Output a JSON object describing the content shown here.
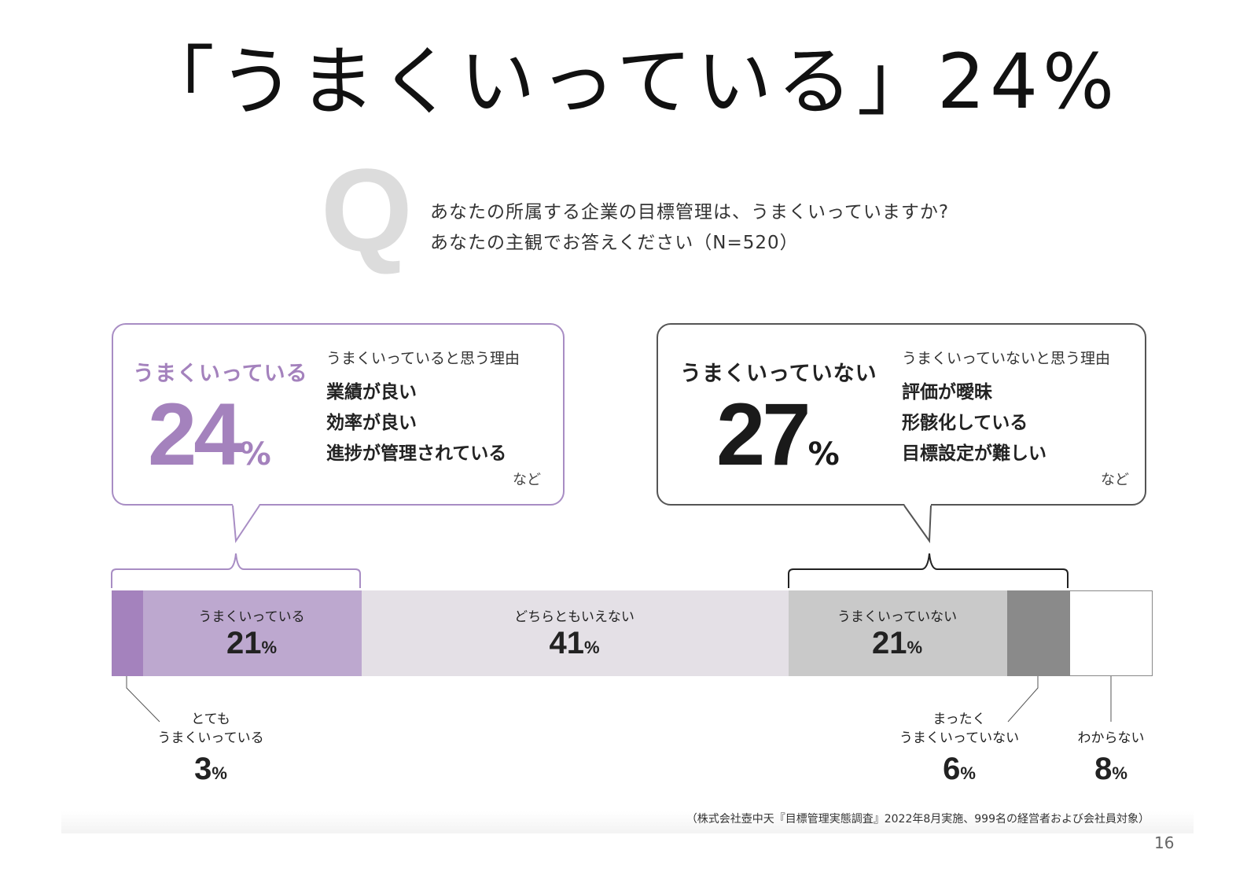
{
  "title": "「うまくいっている」24%",
  "question": {
    "mark": "Q",
    "line1": "あなたの所属する企業の目標管理は、うまくいっていますか?",
    "line2": "あなたの主観でお答えください（N=520）"
  },
  "bubble_good": {
    "heading": "うまくいっている",
    "value": "24",
    "unit": "%",
    "reasons_title": "うまくいっていると思う理由",
    "reasons": [
      "業績が良い",
      "効率が良い",
      "進捗が管理されている"
    ],
    "etc": "など"
  },
  "bubble_bad": {
    "heading": "うまくいっていない",
    "value": "27",
    "unit": "%",
    "reasons_title": "うまくいっていないと思う理由",
    "reasons": [
      "評価が曖昧",
      "形骸化している",
      "目標設定が難しい"
    ],
    "etc": "など"
  },
  "chart_data": {
    "type": "bar",
    "orientation": "horizontal-stacked-100",
    "categories": [
      "とても うまくいっている",
      "うまくいっている",
      "どちらともいえない",
      "うまくいっていない",
      "まったく うまくいっていない",
      "わからない"
    ],
    "values": [
      3,
      21,
      41,
      21,
      6,
      8
    ],
    "colors": [
      "#a482bd",
      "#bda8cf",
      "#e4e0e6",
      "#c9c9c9",
      "#8a8a8a",
      "#ffffff"
    ],
    "segment_labels": [
      {
        "label": "",
        "value": ""
      },
      {
        "label": "うまくいっている",
        "value": "21"
      },
      {
        "label": "どちらともいえない",
        "value": "41"
      },
      {
        "label": "うまくいっていない",
        "value": "21"
      },
      {
        "label": "",
        "value": ""
      },
      {
        "label": "",
        "value": ""
      }
    ],
    "annotations": [
      {
        "line1": "とても",
        "line2": "うまくいっている",
        "value": "3"
      },
      {
        "line1": "まったく",
        "line2": "うまくいっていない",
        "value": "6"
      },
      {
        "line1": "",
        "line2": "わからない",
        "value": "8"
      }
    ],
    "unit": "%",
    "xlim": [
      0,
      100
    ]
  },
  "source": "（株式会社壺中天『目標管理実態調査』2022年8月実施、999名の経営者および会社員対象）",
  "page_number": "16"
}
